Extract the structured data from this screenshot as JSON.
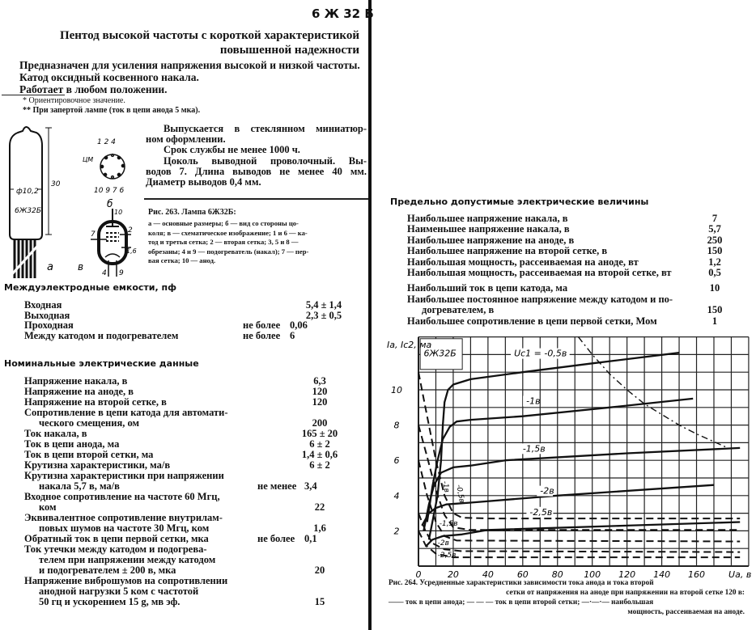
{
  "header": {
    "tube_code": "6 Ж 32 Б",
    "title_line1": "Пентод высокой частоты с короткой характеристикой",
    "title_line2": "повышенной надежности"
  },
  "intro": [
    "Предназначен для усиления напряжения высокой и низкой частоты.",
    "Катод оксидный косвенного накала.",
    "Работает в любом положении."
  ],
  "footnotes": [
    "* Ориентировочное значение.",
    "** При запертой лампе (ток в цепи анода 5 мка)."
  ],
  "construction": [
    "Выпускается в стеклянном миниатюр-",
    "ном оформлении.",
    "Срок службы не менее 1000 ч.",
    "Цоколь выводной проволочный. Вы-",
    "водов 7. Длина выводов не менее 40 мм.",
    "Диаметр выводов 0,4 мм."
  ],
  "figure263": {
    "caption": "Рис. 263. Лампа 6Ж32Б:",
    "description": [
      "а — основные размеры; б — вид со стороны цо-",
      "коля; в — схематическое изображение; 1 и 6 — ка-",
      "тод и третья сетка; 2 — вторая сетка; 3, 5 и 8 —",
      "обрезаны; 4 и 9 — подогреватель (накал); 7 — пер-",
      "вая сетка; 10 — анод."
    ],
    "labels": {
      "a": "а",
      "b": "б",
      "v": "в",
      "diameter": "ф10,2",
      "height": "30",
      "bulb_marking": "6Ж32Б",
      "cm": "ЦМ",
      "pins_top": "1 2   4",
      "pins_bottom": "10 9  7 6",
      "sch_10": "10",
      "sch_7": "7",
      "sch_2": "2",
      "sch_16": "1,6",
      "sch_4": "4",
      "sch_9": "9"
    }
  },
  "capacitances": {
    "title": "Междуэлектродные емкости, пф",
    "rows": [
      {
        "label": [
          "Входная"
        ],
        "value": "5,4 ± 1,4"
      },
      {
        "label": [
          "Выходная"
        ],
        "value": "2,3 ± 0,5"
      },
      {
        "label": [
          "Проходная"
        ],
        "qualifier": "не более",
        "value": "0,06"
      },
      {
        "label": [
          "Между катодом и подогревателем"
        ],
        "qualifier": "не более",
        "value": "6"
      }
    ]
  },
  "nominal": {
    "title": "Номинальные электрические данные",
    "rows": [
      {
        "label": [
          "Напряжение накала, в"
        ],
        "value": "6,3"
      },
      {
        "label": [
          "Напряжение на аноде, в"
        ],
        "value": "120"
      },
      {
        "label": [
          "Напряжение на второй сетке, в"
        ],
        "value": "120"
      },
      {
        "label": [
          "Сопротивление в цепи катода для автомати-",
          "ческого смещения, ом"
        ],
        "value": "200"
      },
      {
        "label": [
          "Ток накала, в"
        ],
        "value": "165 ± 20"
      },
      {
        "label": [
          "Ток в цепи анода, ма"
        ],
        "value": "6 ± 2"
      },
      {
        "label": [
          "Ток в цепи второй сетки, ма"
        ],
        "value": "1,4 ± 0,6"
      },
      {
        "label": [
          "Крутизна характеристики, ма/в"
        ],
        "value": "6 ± 2"
      },
      {
        "label": [
          "Крутизна характеристики при напряжении",
          "накала 5,7 в, ма/в"
        ],
        "qualifier": "не менее",
        "value": "3,4"
      },
      {
        "label": [
          "Входное сопротивление на частоте 60 Мгц,",
          "ком"
        ],
        "value": "22"
      },
      {
        "label": [
          "Эквивалентное сопротивление внутрилам-",
          "повых шумов на частоте 30 Мгц, ком"
        ],
        "value": "1,6"
      },
      {
        "label": [
          "Обратный ток в цепи первой сетки, мка"
        ],
        "qualifier": "не более",
        "value": "0,1"
      },
      {
        "label": [
          "Ток утечки между катодом и подогрева-",
          "телем при напряжении между катодом",
          "и подогревателем ± 200 в, мка"
        ],
        "value": "20"
      },
      {
        "label": [
          "Напряжение виброшумов на сопротивлении",
          "анодной нагрузки 5 ком с частотой",
          "50 гц и ускорением 15 g, мв эф."
        ],
        "value": "15"
      }
    ]
  },
  "limits": {
    "title": "Предельно допустимые электрические величины",
    "rows": [
      {
        "label": [
          "Наибольшее напряжение накала, в"
        ],
        "value": "7"
      },
      {
        "label": [
          "Наименьшее напряжение накала, в"
        ],
        "value": "5,7"
      },
      {
        "label": [
          "Наибольшее напряжение на аноде, в"
        ],
        "value": "250"
      },
      {
        "label": [
          "Наибольшее напряжение на второй сетке, в"
        ],
        "value": "150"
      },
      {
        "label": [
          "Наибольшая мощность, рассеиваемая на аноде, вт"
        ],
        "value": "1,2"
      },
      {
        "label": [
          "Наибольшая мощность, рассеиваемая на второй сетке, вт"
        ],
        "value": "0,5"
      },
      {
        "label": [
          "Наибольший ток в цепи катода, ма"
        ],
        "value": "10"
      },
      {
        "label": [
          "Наибольшее постоянное напряжение между катодом и по-",
          "догревателем, в"
        ],
        "value": "150"
      },
      {
        "label": [
          "Наибольшее сопротивление в цепи первой сетки, Мом"
        ],
        "value": "1"
      }
    ]
  },
  "chart_data": {
    "type": "line",
    "tube_label": "6Ж32Б",
    "ylabel": "Ia, Ic2, ма",
    "xlabel": "Ua, в",
    "xlim": [
      0,
      190
    ],
    "ylim": [
      0,
      13
    ],
    "grid": true,
    "x_ticks": [
      0,
      20,
      40,
      60,
      80,
      100,
      120,
      140,
      160
    ],
    "y_ticks": [
      2,
      4,
      6,
      8,
      10
    ],
    "anode_current": [
      {
        "name": "Uc1 = -0,5в",
        "points": [
          [
            6,
            1.5
          ],
          [
            11,
            4
          ],
          [
            13,
            6
          ],
          [
            14,
            8
          ],
          [
            15,
            9.3
          ],
          [
            17,
            10
          ],
          [
            20,
            10.3
          ],
          [
            30,
            10.6
          ],
          [
            60,
            11
          ],
          [
            100,
            11.5
          ],
          [
            150,
            12.1
          ]
        ]
      },
      {
        "name": "-1в",
        "points": [
          [
            5,
            2.5
          ],
          [
            8,
            4.5
          ],
          [
            11,
            6
          ],
          [
            14,
            7.2
          ],
          [
            18,
            7.9
          ],
          [
            22,
            8.2
          ],
          [
            30,
            8.3
          ],
          [
            60,
            8.5
          ],
          [
            110,
            9
          ],
          [
            158,
            9.5
          ]
        ]
      },
      {
        "name": "-1,5в",
        "points": [
          [
            3,
            2
          ],
          [
            6,
            3.5
          ],
          [
            9,
            4.6
          ],
          [
            13,
            5.3
          ],
          [
            20,
            5.6
          ],
          [
            30,
            5.7
          ],
          [
            50,
            6
          ],
          [
            120,
            6.4
          ],
          [
            185,
            6.7
          ]
        ]
      },
      {
        "name": "-2в",
        "points": [
          [
            2,
            2.3
          ],
          [
            6,
            3
          ],
          [
            10,
            3.3
          ],
          [
            16,
            3.5
          ],
          [
            30,
            3.6
          ],
          [
            80,
            4
          ],
          [
            170,
            4.6
          ]
        ]
      },
      {
        "name": "-2,5в",
        "points": [
          [
            4,
            1.1
          ],
          [
            8,
            1.5
          ],
          [
            14,
            1.7
          ],
          [
            25,
            1.8
          ],
          [
            40,
            2.05
          ],
          [
            120,
            2.3
          ],
          [
            185,
            2.5
          ]
        ]
      }
    ],
    "screen_current": [
      {
        "name": "-0,5в",
        "points": [
          [
            0,
            11
          ],
          [
            5,
            8.5
          ],
          [
            10,
            6
          ],
          [
            15,
            4
          ],
          [
            20,
            3
          ],
          [
            25,
            2.75
          ],
          [
            40,
            2.7
          ],
          [
            185,
            2.7
          ]
        ]
      },
      {
        "name": "-1в",
        "points": [
          [
            0,
            8
          ],
          [
            5,
            6.2
          ],
          [
            10,
            4.3
          ],
          [
            15,
            2.9
          ],
          [
            20,
            2.2
          ],
          [
            30,
            2.05
          ],
          [
            185,
            2.05
          ]
        ]
      },
      {
        "name": "-1,5в",
        "points": [
          [
            0,
            6
          ],
          [
            5,
            4
          ],
          [
            10,
            2.5
          ],
          [
            15,
            1.7
          ],
          [
            22,
            1.45
          ],
          [
            185,
            1.4
          ]
        ]
      },
      {
        "name": "-2в",
        "points": [
          [
            0,
            3
          ],
          [
            4,
            2
          ],
          [
            8,
            1.3
          ],
          [
            15,
            0.95
          ],
          [
            25,
            0.85
          ],
          [
            185,
            0.8
          ]
        ]
      },
      {
        "name": "-2,5в",
        "points": [
          [
            0,
            2
          ],
          [
            4,
            1.2
          ],
          [
            10,
            0.7
          ],
          [
            20,
            0.5
          ],
          [
            185,
            0.5
          ]
        ]
      }
    ],
    "max_anode_power": {
      "watts": 1.2,
      "points": [
        [
          92,
          13
        ],
        [
          100,
          12
        ],
        [
          110,
          10.9
        ],
        [
          120,
          10
        ],
        [
          130,
          9.2
        ],
        [
          140,
          8.6
        ],
        [
          150,
          8
        ],
        [
          160,
          7.5
        ],
        [
          178,
          6.7
        ]
      ]
    },
    "caption": [
      "Рис. 264. Усредненные характеристики зависимости тока анода и тока второй",
      "сетки от напряжения на аноде при напряжении на второй сетке 120 в:",
      "—— ток в цепи анода; — — — ток в цепи второй сетки; —·—·— наибольшая",
      "мощность, рассеиваемая на аноде."
    ]
  }
}
